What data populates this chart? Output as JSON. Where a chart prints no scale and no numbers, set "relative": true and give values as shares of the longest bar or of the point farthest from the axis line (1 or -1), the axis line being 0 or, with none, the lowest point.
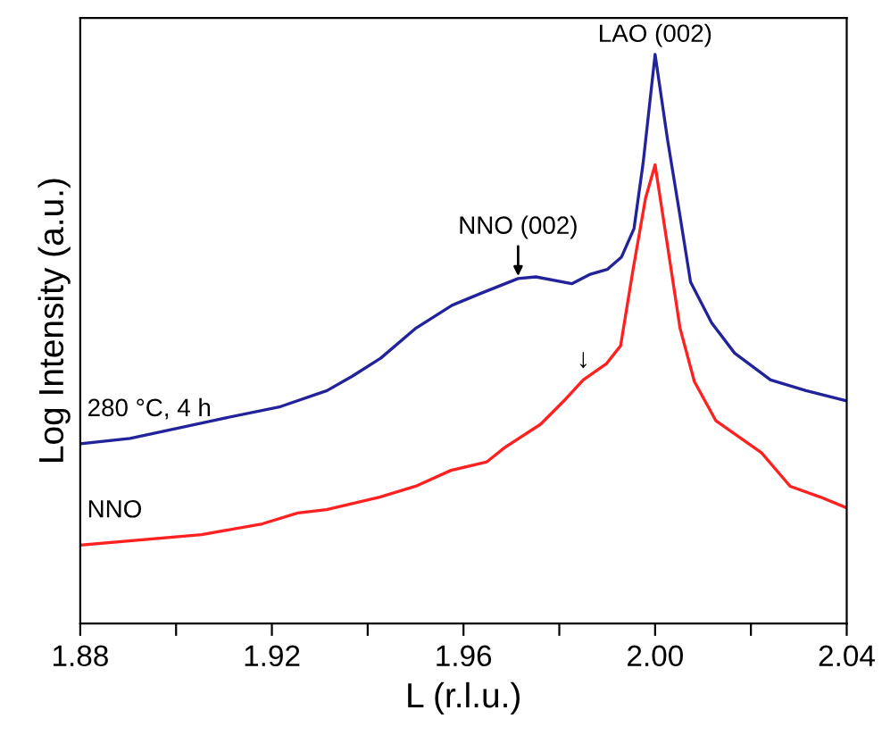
{
  "chart_data": {
    "type": "line",
    "xlabel": "L (r.l.u.)",
    "ylabel": "Log Intensity (a.u.)",
    "relative": true,
    "tick_labels": "x",
    "legend": false,
    "grid": false,
    "xlim": [
      1.88,
      2.04
    ],
    "xticks": [
      1.88,
      {
        "value": 1.9,
        "label": null
      },
      1.92,
      {
        "value": 1.94,
        "label": null
      },
      1.96,
      {
        "value": 1.98,
        "label": null
      },
      "2.00",
      {
        "value": 2.02,
        "label": null
      },
      2.04
    ],
    "series": [
      {
        "name": "280 °C, 4 h",
        "color": "#22229a",
        "x": [
          1.8804,
          1.8904,
          1.9091,
          1.9218,
          1.9315,
          1.9367,
          1.9427,
          1.9501,
          1.9576,
          1.9639,
          1.9714,
          1.9751,
          1.9826,
          1.9863,
          1.99,
          1.993,
          1.9956,
          1.9975,
          2.0,
          2.0026,
          2.0052,
          2.0074,
          2.0118,
          2.0166,
          2.0241,
          2.0315,
          2.04
        ],
        "values": [
          0.316,
          0.325,
          0.359,
          0.381,
          0.409,
          0.434,
          0.466,
          0.519,
          0.559,
          0.581,
          0.606,
          0.609,
          0.597,
          0.613,
          0.622,
          0.644,
          0.694,
          0.809,
          1.0,
          0.85,
          0.716,
          0.6,
          0.528,
          0.475,
          0.428,
          0.409,
          0.391
        ]
      },
      {
        "name": "NNO",
        "color": "#ff2020",
        "x": [
          1.8804,
          1.9053,
          1.918,
          1.9254,
          1.9314,
          1.9425,
          1.95,
          1.9574,
          1.9649,
          1.9686,
          1.9761,
          1.9813,
          1.985,
          1.9898,
          1.9928,
          1.9954,
          1.998,
          2.0,
          2.0026,
          2.0052,
          2.0082,
          2.0127,
          2.0222,
          2.0282,
          2.0345,
          2.04
        ],
        "values": [
          0.138,
          0.156,
          0.175,
          0.194,
          0.2,
          0.222,
          0.241,
          0.269,
          0.284,
          0.309,
          0.35,
          0.394,
          0.428,
          0.456,
          0.488,
          0.622,
          0.747,
          0.806,
          0.663,
          0.519,
          0.425,
          0.356,
          0.3,
          0.241,
          0.222,
          0.203
        ]
      }
    ],
    "annotations": [
      {
        "text": "LAO (002)",
        "x": 2.0,
        "y": 1.0
      },
      {
        "text": "NNO (002)",
        "x": 1.9714,
        "y": 0.606
      },
      {
        "text": "↓",
        "x": 1.985,
        "y": 0.44
      }
    ]
  }
}
